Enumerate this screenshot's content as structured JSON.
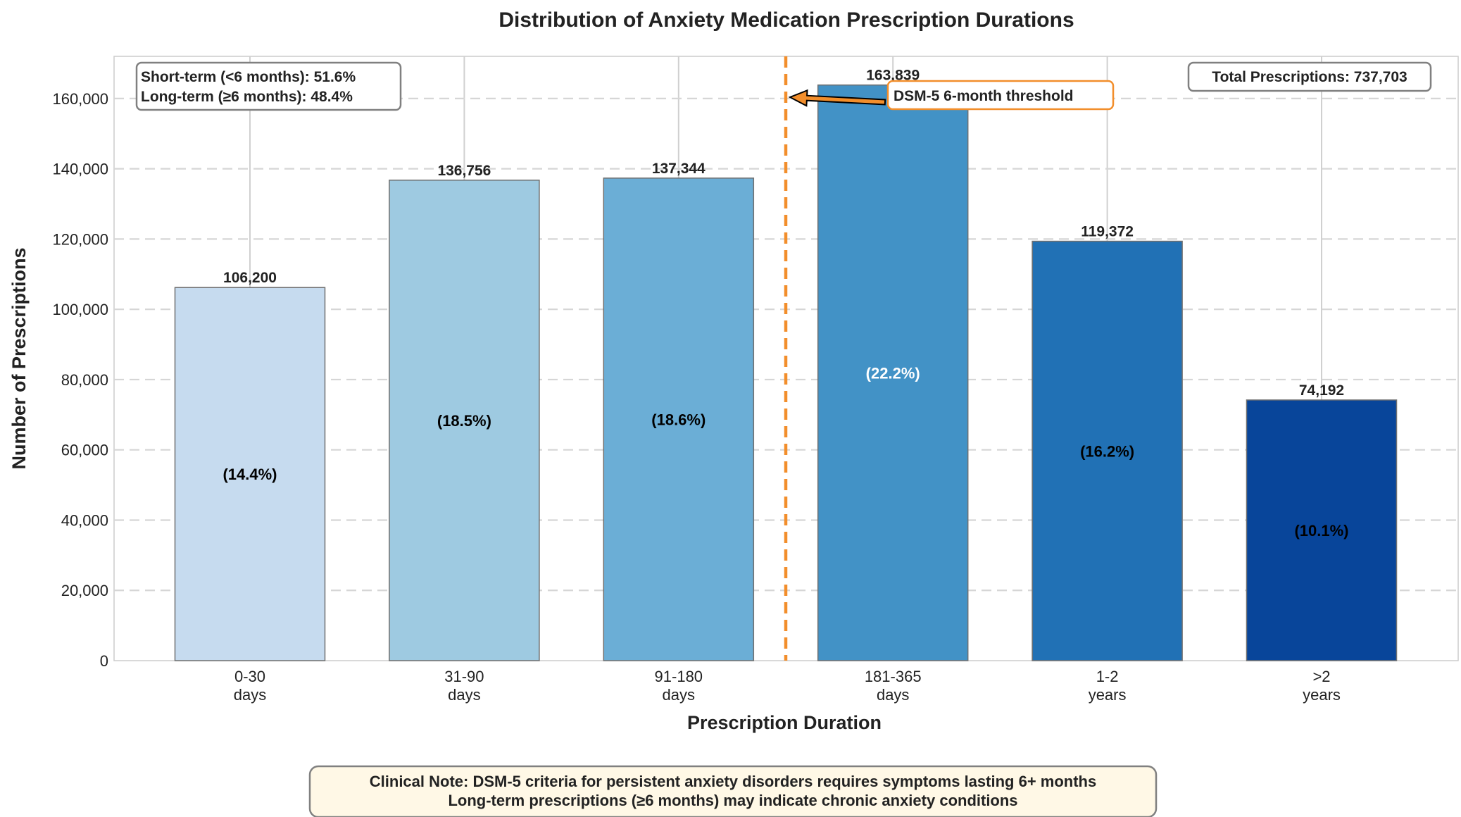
{
  "chart_data": {
    "type": "bar",
    "title": "Distribution of Anxiety Medication Prescription Durations",
    "xlabel": "Prescription Duration",
    "ylabel": "Number of Prescriptions",
    "ylim": [
      0,
      172000
    ],
    "yticks": [
      0,
      20000,
      40000,
      60000,
      80000,
      100000,
      120000,
      140000,
      160000
    ],
    "ytick_labels": [
      "0",
      "20,000",
      "40,000",
      "60,000",
      "80,000",
      "100,000",
      "120,000",
      "140,000",
      "160,000"
    ],
    "grid": true,
    "categories": [
      {
        "line1": "0-30",
        "line2": "days"
      },
      {
        "line1": "31-90",
        "line2": "days"
      },
      {
        "line1": "91-180",
        "line2": "days"
      },
      {
        "line1": "181-365",
        "line2": "days"
      },
      {
        "line1": "1-2",
        "line2": "years"
      },
      {
        "line1": ">2",
        "line2": "years"
      }
    ],
    "values": [
      106200,
      136756,
      137344,
      163839,
      119372,
      74192
    ],
    "value_labels": [
      "106,200",
      "136,756",
      "137,344",
      "163,839",
      "119,372",
      "74,192"
    ],
    "percent_labels": [
      "(14.4%)",
      "(18.5%)",
      "(18.6%)",
      "(22.2%)",
      "(16.2%)",
      "(10.1%)"
    ],
    "colors": [
      "#c6dbef",
      "#9ecae1",
      "#6baed6",
      "#4292c6",
      "#2171b5",
      "#08459a"
    ],
    "percent_label_colors": [
      "#000000",
      "#000000",
      "#000000",
      "#ffffff",
      "#000000",
      "#000000"
    ],
    "threshold": {
      "label": "DSM-5 6-month threshold",
      "color": "#f28e2b",
      "position_between": [
        2,
        3
      ]
    },
    "summary_box": {
      "line1": "Short-term (<6 months): 51.6%",
      "line2": "Long-term (≥6 months): 48.4%"
    },
    "total_box": "Total Prescriptions: 737,703",
    "clinical_note": {
      "line1": "Clinical Note: DSM-5 criteria for persistent anxiety disorders requires symptoms lasting 6+ months",
      "line2": "Long-term prescriptions (≥6 months) may indicate chronic anxiety conditions"
    }
  }
}
